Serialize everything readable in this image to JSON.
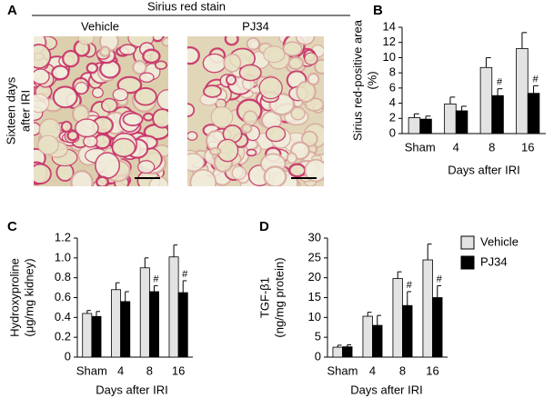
{
  "panel_a": {
    "label": "A",
    "title": "Sirius red stain",
    "columns": [
      "Vehicle",
      "PJ34"
    ],
    "row_label": [
      "Sixteen days",
      "after IRI"
    ]
  },
  "chart_data": [
    {
      "type": "bar",
      "panel": "B",
      "ylabel": [
        "Sirius red-positive area",
        "(%)"
      ],
      "xlabel": "Days after IRI",
      "categories": [
        "Sham",
        "4",
        "8",
        "16"
      ],
      "ylim": [
        0,
        14
      ],
      "yticks": [
        0,
        2,
        4,
        6,
        8,
        10,
        12,
        14
      ],
      "legend": false,
      "series": [
        {
          "name": "Vehicle",
          "color": "#e3e3e3",
          "values": [
            2.1,
            3.9,
            8.7,
            11.2
          ],
          "errors": [
            0.5,
            0.9,
            1.3,
            2.1
          ]
        },
        {
          "name": "PJ34",
          "color": "#000000",
          "values": [
            1.9,
            3.0,
            5.0,
            5.3
          ],
          "errors": [
            0.4,
            0.6,
            0.9,
            1.0
          ],
          "annotations": [
            null,
            null,
            "#",
            "#"
          ]
        }
      ]
    },
    {
      "type": "bar",
      "panel": "C",
      "ylabel": [
        "Hydroxyproline",
        "(μg/mg kidney)"
      ],
      "xlabel": "Days after IRI",
      "categories": [
        "Sham",
        "4",
        "8",
        "16"
      ],
      "ylim": [
        0,
        1.2
      ],
      "yticks": [
        0,
        0.2,
        0.4,
        0.6,
        0.8,
        {
          "value": 1,
          "label": "1.0"
        },
        1.2
      ],
      "legend": false,
      "series": [
        {
          "name": "Vehicle",
          "color": "#e3e3e3",
          "values": [
            0.44,
            0.68,
            0.9,
            1.01
          ],
          "errors": [
            0.03,
            0.07,
            0.1,
            0.12
          ]
        },
        {
          "name": "PJ34",
          "color": "#000000",
          "values": [
            0.41,
            0.56,
            0.66,
            0.65
          ],
          "errors": [
            0.05,
            0.1,
            0.06,
            0.12
          ],
          "annotations": [
            null,
            null,
            "#",
            "#"
          ]
        }
      ]
    },
    {
      "type": "bar",
      "panel": "D",
      "ylabel": [
        "TGF-β1",
        "(ng/mg protein)"
      ],
      "xlabel": "Days after IRI",
      "categories": [
        "Sham",
        "4",
        "8",
        "16"
      ],
      "ylim": [
        0,
        30
      ],
      "yticks": [
        0,
        5,
        10,
        15,
        20,
        25,
        30
      ],
      "legend": true,
      "series": [
        {
          "name": "Vehicle",
          "color": "#e3e3e3",
          "values": [
            2.5,
            10.3,
            19.8,
            24.5
          ],
          "errors": [
            0.5,
            1.0,
            1.7,
            4.0
          ]
        },
        {
          "name": "PJ34",
          "color": "#000000",
          "values": [
            2.6,
            8.0,
            13.0,
            15.0
          ],
          "errors": [
            0.5,
            2.5,
            3.5,
            3.0
          ],
          "annotations": [
            null,
            null,
            "#",
            "#"
          ]
        }
      ]
    }
  ]
}
